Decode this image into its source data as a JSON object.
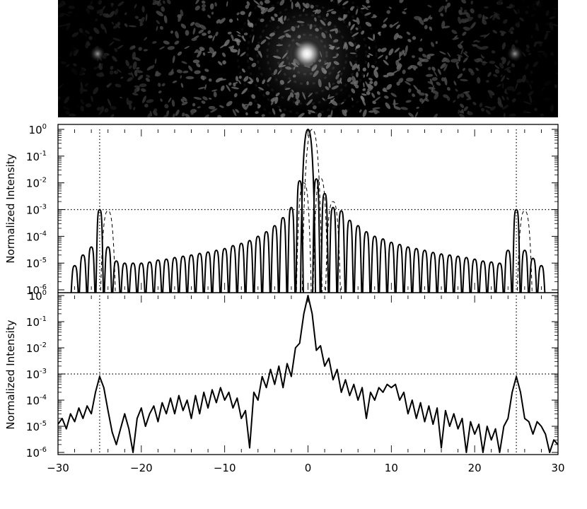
{
  "chart_data": [
    {
      "type": "image",
      "panel": "top",
      "description_values": {
        "xlim": [
          -30,
          30
        ],
        "bright_spots_x": [
          -25,
          0,
          25
        ],
        "colormap": "grayscale"
      }
    },
    {
      "type": "line",
      "panel": "middle",
      "xlabel": "",
      "ylabel": "Normalized Intensity",
      "xlim": [
        -30,
        30
      ],
      "ylim": [
        1e-06,
        1
      ],
      "yscale": "log",
      "y_tick_labels": [
        {
          "base": "10",
          "exp": "0"
        },
        {
          "base": "10",
          "exp": "-1"
        },
        {
          "base": "10",
          "exp": "-2"
        },
        {
          "base": "10",
          "exp": "-3"
        },
        {
          "base": "10",
          "exp": "-4"
        },
        {
          "base": "10",
          "exp": "-5"
        },
        {
          "base": "10",
          "exp": "-6"
        }
      ],
      "reference_lines": {
        "horizontal_y": 0.001,
        "vertical_x": [
          -25,
          25
        ],
        "style": "dotted"
      },
      "series": [
        {
          "style": "solid",
          "peaks": [
            {
              "x": -28,
              "y": 8e-06
            },
            {
              "x": -27,
              "y": 2e-05
            },
            {
              "x": -26,
              "y": 4e-05
            },
            {
              "x": -25,
              "y": 0.001
            },
            {
              "x": -24,
              "y": 4e-05
            },
            {
              "x": -23,
              "y": 1.2e-05
            },
            {
              "x": -22,
              "y": 1e-05
            },
            {
              "x": -21,
              "y": 1e-05
            },
            {
              "x": -20,
              "y": 1e-05
            },
            {
              "x": -19,
              "y": 1.1e-05
            },
            {
              "x": -18,
              "y": 1.3e-05
            },
            {
              "x": -17,
              "y": 1.4e-05
            },
            {
              "x": -16,
              "y": 1.6e-05
            },
            {
              "x": -15,
              "y": 1.8e-05
            },
            {
              "x": -14,
              "y": 2e-05
            },
            {
              "x": -13,
              "y": 2.3e-05
            },
            {
              "x": -12,
              "y": 2.6e-05
            },
            {
              "x": -11,
              "y": 3e-05
            },
            {
              "x": -10,
              "y": 3.5e-05
            },
            {
              "x": -9,
              "y": 4.5e-05
            },
            {
              "x": -8,
              "y": 5.5e-05
            },
            {
              "x": -7,
              "y": 7e-05
            },
            {
              "x": -6,
              "y": 0.0001
            },
            {
              "x": -5,
              "y": 0.00015
            },
            {
              "x": -4,
              "y": 0.00025
            },
            {
              "x": -3,
              "y": 0.0005
            },
            {
              "x": -2,
              "y": 0.0012
            },
            {
              "x": -1,
              "y": 0.012
            },
            {
              "x": 0,
              "y": 1.0
            },
            {
              "x": 1,
              "y": 0.014
            },
            {
              "x": 2,
              "y": 0.004
            },
            {
              "x": 3,
              "y": 0.0012
            },
            {
              "x": 4,
              "y": 0.0009
            },
            {
              "x": 5,
              "y": 0.0004
            },
            {
              "x": 6,
              "y": 0.00025
            },
            {
              "x": 7,
              "y": 0.00015
            },
            {
              "x": 8,
              "y": 0.0001
            },
            {
              "x": 9,
              "y": 8e-05
            },
            {
              "x": 10,
              "y": 6e-05
            },
            {
              "x": 11,
              "y": 5e-05
            },
            {
              "x": 12,
              "y": 4e-05
            },
            {
              "x": 13,
              "y": 3.5e-05
            },
            {
              "x": 14,
              "y": 3e-05
            },
            {
              "x": 15,
              "y": 2.5e-05
            },
            {
              "x": 16,
              "y": 2.2e-05
            },
            {
              "x": 17,
              "y": 2e-05
            },
            {
              "x": 18,
              "y": 1.8e-05
            },
            {
              "x": 19,
              "y": 1.6e-05
            },
            {
              "x": 20,
              "y": 1.4e-05
            },
            {
              "x": 21,
              "y": 1.2e-05
            },
            {
              "x": 22,
              "y": 1.1e-05
            },
            {
              "x": 23,
              "y": 1e-05
            },
            {
              "x": 24,
              "y": 3e-05
            },
            {
              "x": 25,
              "y": 0.001
            },
            {
              "x": 26,
              "y": 3e-05
            },
            {
              "x": 27,
              "y": 1.5e-05
            },
            {
              "x": 28,
              "y": 8e-06
            }
          ]
        },
        {
          "style": "dashed",
          "peaks": [
            {
              "x": -24,
              "y": 0.0009
            },
            {
              "x": 0.5,
              "y": 1.0
            },
            {
              "x": 1.5,
              "y": 0.015
            },
            {
              "x": -0.5,
              "y": 0.01
            },
            {
              "x": 3,
              "y": 0.002
            },
            {
              "x": 26,
              "y": 0.0009
            }
          ]
        }
      ]
    },
    {
      "type": "line",
      "panel": "bottom",
      "xlabel": "",
      "ylabel": "Normalized Intensity",
      "xlim": [
        -30,
        30
      ],
      "ylim": [
        1e-06,
        1
      ],
      "yscale": "log",
      "x_tick_labels": [
        "−30",
        "−20",
        "−10",
        "0",
        "10",
        "20",
        "30"
      ],
      "y_tick_labels": [
        {
          "base": "10",
          "exp": "0"
        },
        {
          "base": "10",
          "exp": "-1"
        },
        {
          "base": "10",
          "exp": "-2"
        },
        {
          "base": "10",
          "exp": "-3"
        },
        {
          "base": "10",
          "exp": "-4"
        },
        {
          "base": "10",
          "exp": "-5"
        },
        {
          "base": "10",
          "exp": "-6"
        }
      ],
      "reference_lines": {
        "horizontal_y": 0.001,
        "vertical_x": [
          -25,
          25
        ],
        "style": "dotted"
      },
      "series": [
        {
          "style": "solid",
          "points": [
            [
              -30,
              1.2e-05
            ],
            [
              -29.5,
              2e-05
            ],
            [
              -29,
              8e-06
            ],
            [
              -28.5,
              3e-05
            ],
            [
              -28,
              1.5e-05
            ],
            [
              -27.5,
              5e-05
            ],
            [
              -27,
              2e-05
            ],
            [
              -26.5,
              6e-05
            ],
            [
              -26,
              3e-05
            ],
            [
              -25.5,
              0.0002
            ],
            [
              -25,
              0.0008
            ],
            [
              -24.5,
              0.0003
            ],
            [
              -24,
              4e-05
            ],
            [
              -23.5,
              6e-06
            ],
            [
              -23,
              2e-06
            ],
            [
              -22.5,
              8e-06
            ],
            [
              -22,
              3e-05
            ],
            [
              -21.5,
              8e-06
            ],
            [
              -21,
              1e-06
            ],
            [
              -20.5,
              2e-05
            ],
            [
              -20,
              5e-05
            ],
            [
              -19.5,
              1e-05
            ],
            [
              -19,
              3e-05
            ],
            [
              -18.5,
              6e-05
            ],
            [
              -18,
              1.5e-05
            ],
            [
              -17.5,
              8e-05
            ],
            [
              -17,
              3e-05
            ],
            [
              -16.5,
              0.00012
            ],
            [
              -16,
              3e-05
            ],
            [
              -15.5,
              0.00015
            ],
            [
              -15,
              4e-05
            ],
            [
              -14.5,
              0.0001
            ],
            [
              -14,
              2e-05
            ],
            [
              -13.5,
              0.00015
            ],
            [
              -13,
              3e-05
            ],
            [
              -12.5,
              0.0002
            ],
            [
              -12,
              5e-05
            ],
            [
              -11.5,
              0.00025
            ],
            [
              -11,
              8e-05
            ],
            [
              -10.5,
              0.0003
            ],
            [
              -10,
              0.0001
            ],
            [
              -9.5,
              0.0002
            ],
            [
              -9,
              5e-05
            ],
            [
              -8.5,
              0.00012
            ],
            [
              -8,
              2e-05
            ],
            [
              -7.5,
              4e-05
            ],
            [
              -7,
              1.5e-06
            ],
            [
              -6.5,
              0.0002
            ],
            [
              -6,
              0.0001
            ],
            [
              -5.5,
              0.0008
            ],
            [
              -5,
              0.0003
            ],
            [
              -4.5,
              0.0015
            ],
            [
              -4,
              0.0004
            ],
            [
              -3.5,
              0.002
            ],
            [
              -3,
              0.0003
            ],
            [
              -2.5,
              0.0025
            ],
            [
              -2,
              0.0008
            ],
            [
              -1.5,
              0.01
            ],
            [
              -1,
              0.015
            ],
            [
              -0.5,
              0.2
            ],
            [
              0,
              1.0
            ],
            [
              0.5,
              0.2
            ],
            [
              1,
              0.008
            ],
            [
              1.5,
              0.012
            ],
            [
              2,
              0.002
            ],
            [
              2.5,
              0.004
            ],
            [
              3,
              0.0006
            ],
            [
              3.5,
              0.0015
            ],
            [
              4,
              0.0002
            ],
            [
              4.5,
              0.0006
            ],
            [
              5,
              0.00015
            ],
            [
              5.5,
              0.0004
            ],
            [
              6,
              0.0001
            ],
            [
              6.5,
              0.0003
            ],
            [
              7,
              2e-05
            ],
            [
              7.5,
              0.0002
            ],
            [
              8,
              0.0001
            ],
            [
              8.5,
              0.0003
            ],
            [
              9,
              0.0002
            ],
            [
              9.5,
              0.0004
            ],
            [
              10,
              0.0003
            ],
            [
              10.5,
              0.0004
            ],
            [
              11,
              0.0001
            ],
            [
              11.5,
              0.0002
            ],
            [
              12,
              3e-05
            ],
            [
              12.5,
              0.0001
            ],
            [
              13,
              2e-05
            ],
            [
              13.5,
              8e-05
            ],
            [
              14,
              1.5e-05
            ],
            [
              14.5,
              6e-05
            ],
            [
              15,
              1.2e-05
            ],
            [
              15.5,
              5e-05
            ],
            [
              16,
              1.5e-06
            ],
            [
              16.5,
              4e-05
            ],
            [
              17,
              1e-05
            ],
            [
              17.5,
              3e-05
            ],
            [
              18,
              8e-06
            ],
            [
              18.5,
              2e-05
            ],
            [
              19,
              1e-06
            ],
            [
              19.5,
              1.5e-05
            ],
            [
              20,
              5e-06
            ],
            [
              20.5,
              1.2e-05
            ],
            [
              21,
              1e-06
            ],
            [
              21.5,
              1e-05
            ],
            [
              22,
              3e-06
            ],
            [
              22.5,
              8e-06
            ],
            [
              23,
              1e-06
            ],
            [
              23.5,
              1e-05
            ],
            [
              24,
              2e-05
            ],
            [
              24.5,
              0.0002
            ],
            [
              25,
              0.0008
            ],
            [
              25.5,
              0.0002
            ],
            [
              26,
              2e-05
            ],
            [
              26.5,
              1.5e-05
            ],
            [
              27,
              5e-06
            ],
            [
              27.5,
              1.5e-05
            ],
            [
              28,
              1e-05
            ],
            [
              28.5,
              5e-06
            ],
            [
              29,
              1e-06
            ],
            [
              29.5,
              3e-06
            ],
            [
              30,
              2e-06
            ]
          ]
        }
      ]
    }
  ]
}
